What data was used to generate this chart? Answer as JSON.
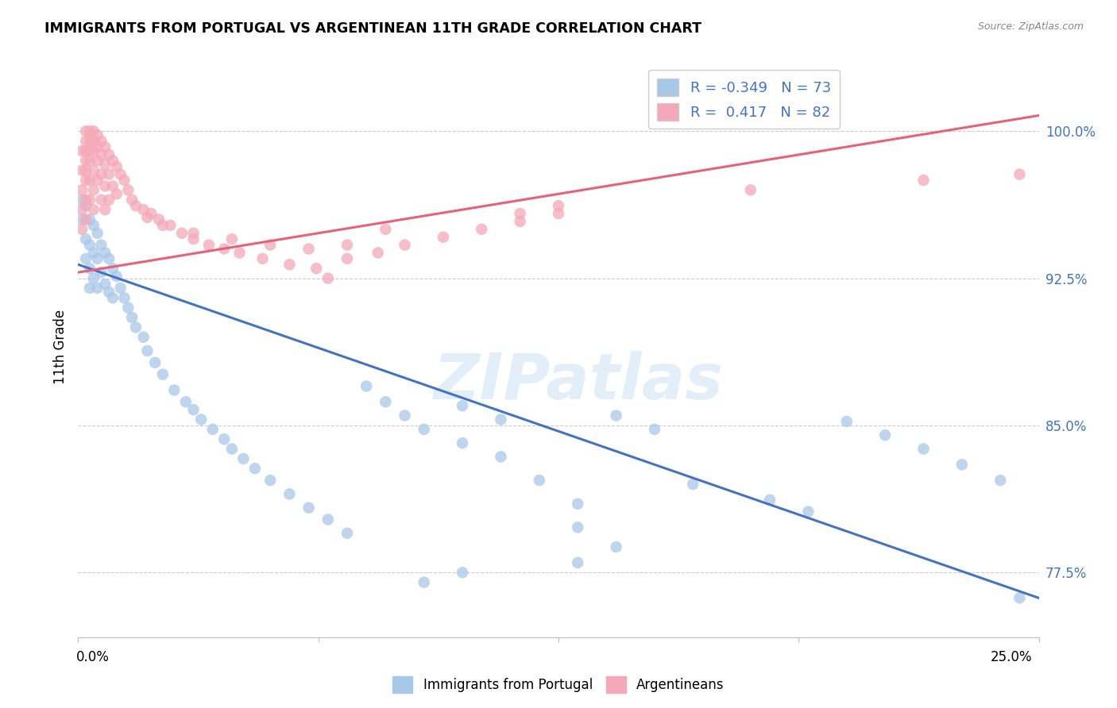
{
  "title": "IMMIGRANTS FROM PORTUGAL VS ARGENTINEAN 11TH GRADE CORRELATION CHART",
  "source": "Source: ZipAtlas.com",
  "ylabel": "11th Grade",
  "ylabel_right_labels": [
    "100.0%",
    "92.5%",
    "85.0%",
    "77.5%"
  ],
  "ylabel_right_values": [
    1.0,
    0.925,
    0.85,
    0.775
  ],
  "x_min": 0.0,
  "x_max": 0.25,
  "y_min": 0.742,
  "y_max": 1.038,
  "blue_label": "Immigrants from Portugal",
  "pink_label": "Argentineans",
  "blue_R": -0.349,
  "blue_N": 73,
  "pink_R": 0.417,
  "pink_N": 82,
  "blue_color": "#a8c8e8",
  "pink_color": "#f4a8b8",
  "blue_line_color": "#4472c4",
  "pink_line_color": "#e8607a",
  "watermark": "ZIPatlas",
  "blue_line_x0": 0.0,
  "blue_line_y0": 0.932,
  "blue_line_x1": 0.25,
  "blue_line_y1": 0.762,
  "pink_line_x0": 0.0,
  "pink_line_y0": 0.928,
  "pink_line_x1": 0.25,
  "pink_line_y1": 1.008,
  "blue_x": [
    0.001,
    0.001,
    0.002,
    0.002,
    0.002,
    0.003,
    0.003,
    0.003,
    0.003,
    0.004,
    0.004,
    0.004,
    0.005,
    0.005,
    0.005,
    0.006,
    0.006,
    0.007,
    0.007,
    0.008,
    0.008,
    0.009,
    0.009,
    0.01,
    0.011,
    0.012,
    0.013,
    0.014,
    0.015,
    0.017,
    0.018,
    0.02,
    0.022,
    0.025,
    0.028,
    0.03,
    0.032,
    0.035,
    0.038,
    0.04,
    0.043,
    0.046,
    0.05,
    0.055,
    0.06,
    0.065,
    0.07,
    0.075,
    0.08,
    0.085,
    0.09,
    0.1,
    0.11,
    0.12,
    0.13,
    0.14,
    0.15,
    0.13,
    0.14,
    0.1,
    0.11,
    0.16,
    0.18,
    0.19,
    0.2,
    0.21,
    0.22,
    0.23,
    0.24,
    0.245,
    0.13,
    0.1,
    0.09
  ],
  "blue_y": [
    0.955,
    0.965,
    0.962,
    0.945,
    0.935,
    0.955,
    0.942,
    0.93,
    0.92,
    0.952,
    0.938,
    0.925,
    0.948,
    0.935,
    0.92,
    0.942,
    0.928,
    0.938,
    0.922,
    0.935,
    0.918,
    0.93,
    0.915,
    0.926,
    0.92,
    0.915,
    0.91,
    0.905,
    0.9,
    0.895,
    0.888,
    0.882,
    0.876,
    0.868,
    0.862,
    0.858,
    0.853,
    0.848,
    0.843,
    0.838,
    0.833,
    0.828,
    0.822,
    0.815,
    0.808,
    0.802,
    0.795,
    0.87,
    0.862,
    0.855,
    0.848,
    0.841,
    0.834,
    0.822,
    0.81,
    0.855,
    0.848,
    0.798,
    0.788,
    0.86,
    0.853,
    0.82,
    0.812,
    0.806,
    0.852,
    0.845,
    0.838,
    0.83,
    0.822,
    0.762,
    0.78,
    0.775,
    0.77
  ],
  "pink_x": [
    0.001,
    0.001,
    0.001,
    0.001,
    0.001,
    0.002,
    0.002,
    0.002,
    0.002,
    0.002,
    0.002,
    0.002,
    0.002,
    0.003,
    0.003,
    0.003,
    0.003,
    0.003,
    0.003,
    0.004,
    0.004,
    0.004,
    0.004,
    0.004,
    0.004,
    0.005,
    0.005,
    0.005,
    0.005,
    0.006,
    0.006,
    0.006,
    0.006,
    0.007,
    0.007,
    0.007,
    0.007,
    0.008,
    0.008,
    0.008,
    0.009,
    0.009,
    0.01,
    0.01,
    0.011,
    0.012,
    0.013,
    0.014,
    0.015,
    0.017,
    0.019,
    0.021,
    0.024,
    0.027,
    0.03,
    0.034,
    0.038,
    0.042,
    0.048,
    0.055,
    0.062,
    0.07,
    0.078,
    0.085,
    0.095,
    0.105,
    0.115,
    0.125,
    0.065,
    0.08,
    0.018,
    0.022,
    0.03,
    0.04,
    0.05,
    0.06,
    0.07,
    0.115,
    0.125,
    0.175,
    0.22,
    0.245
  ],
  "pink_y": [
    0.99,
    0.98,
    0.97,
    0.96,
    0.95,
    1.0,
    0.995,
    0.99,
    0.985,
    0.98,
    0.975,
    0.965,
    0.955,
    1.0,
    0.995,
    0.99,
    0.985,
    0.975,
    0.965,
    1.0,
    0.995,
    0.99,
    0.98,
    0.97,
    0.96,
    0.998,
    0.992,
    0.985,
    0.975,
    0.995,
    0.988,
    0.978,
    0.965,
    0.992,
    0.983,
    0.972,
    0.96,
    0.988,
    0.978,
    0.965,
    0.985,
    0.972,
    0.982,
    0.968,
    0.978,
    0.975,
    0.97,
    0.965,
    0.962,
    0.96,
    0.958,
    0.955,
    0.952,
    0.948,
    0.945,
    0.942,
    0.94,
    0.938,
    0.935,
    0.932,
    0.93,
    0.935,
    0.938,
    0.942,
    0.946,
    0.95,
    0.954,
    0.958,
    0.925,
    0.95,
    0.956,
    0.952,
    0.948,
    0.945,
    0.942,
    0.94,
    0.942,
    0.958,
    0.962,
    0.97,
    0.975,
    0.978
  ]
}
